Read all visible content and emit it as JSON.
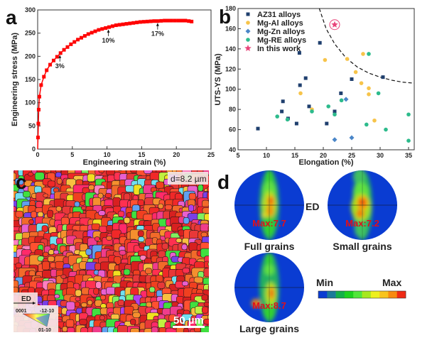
{
  "panel_labels": {
    "a": "a",
    "b": "b",
    "c": "c",
    "d": "d"
  },
  "chart_data": [
    {
      "type": "line",
      "panel": "a",
      "xlabel": "Engineering strain (%)",
      "ylabel": "Engineering stress (MPa)",
      "xlim": [
        0,
        25
      ],
      "ylim": [
        0,
        300
      ],
      "xticks": [
        "0",
        "5",
        "10",
        "15",
        "20",
        "25"
      ],
      "yticks": [
        "0",
        "50",
        "100",
        "150",
        "200",
        "250",
        "300"
      ],
      "grid": false,
      "color": "#ff0000",
      "marker": "square",
      "x": [
        0,
        0.05,
        0.1,
        0.15,
        0.25,
        0.5,
        0.9,
        1.3,
        1.8,
        2.3,
        2.8,
        3.3,
        3.8,
        4.3,
        4.8,
        5.3,
        5.8,
        6.3,
        6.8,
        7.3,
        7.8,
        8.3,
        8.8,
        9.3,
        9.8,
        10.3,
        10.8,
        11.3,
        11.8,
        12.3,
        12.8,
        13.3,
        13.8,
        14.3,
        14.8,
        15.3,
        15.8,
        16.3,
        16.8,
        17.3,
        17.8,
        18.3,
        18.8,
        19.3,
        19.8,
        20.3,
        20.8,
        21.3,
        21.8,
        22.2
      ],
      "y": [
        0,
        25,
        55,
        85,
        113,
        138,
        156,
        170,
        182,
        191,
        199,
        207,
        214,
        220,
        226,
        231,
        236,
        240,
        244,
        248,
        251,
        254,
        257,
        259,
        261,
        263,
        265,
        267,
        268,
        269,
        270,
        271,
        272,
        273,
        274,
        274.5,
        275,
        275.5,
        276,
        276,
        276.5,
        277,
        277,
        277,
        277,
        277,
        277,
        277,
        276,
        275
      ],
      "annotations": [
        {
          "text": "3%",
          "x": 3.2,
          "y": 207
        },
        {
          "text": "10%",
          "x": 10.2,
          "y": 262
        },
        {
          "text": "17%",
          "x": 17.3,
          "y": 276
        }
      ]
    },
    {
      "type": "scatter",
      "panel": "b",
      "xlabel": "Elongation (%)",
      "ylabel": "UTS-YS (MPa)",
      "xlim": [
        5,
        36
      ],
      "ylim": [
        40,
        180
      ],
      "xticks": [
        "5",
        "10",
        "15",
        "20",
        "25",
        "30",
        "35"
      ],
      "yticks": [
        "40",
        "60",
        "80",
        "100",
        "120",
        "140",
        "160",
        "180"
      ],
      "grid": false,
      "legend_position": "top-left",
      "series": [
        {
          "name": "AZ31 alloys",
          "marker": "square",
          "color": "#1f3f6e",
          "points": [
            [
              8.5,
              61
            ],
            [
              12.7,
              78
            ],
            [
              12.9,
              88
            ],
            [
              13.8,
              71
            ],
            [
              15.3,
              66
            ],
            [
              15.8,
              136
            ],
            [
              15.9,
              104
            ],
            [
              16.9,
              111
            ],
            [
              17.5,
              83
            ],
            [
              19.4,
              146
            ],
            [
              20.6,
              66
            ],
            [
              22,
              78
            ],
            [
              23.1,
              96
            ],
            [
              25,
              110
            ],
            [
              30.5,
              112
            ]
          ]
        },
        {
          "name": "Mg-Al alloys",
          "marker": "circle",
          "color": "#f7c44a",
          "points": [
            [
              16,
              96
            ],
            [
              18,
              80
            ],
            [
              20.3,
              129
            ],
            [
              24.2,
              130
            ],
            [
              25.7,
              117
            ],
            [
              26.7,
              106
            ],
            [
              27,
              135
            ],
            [
              28,
              101
            ],
            [
              28,
              95
            ],
            [
              29,
              69
            ]
          ]
        },
        {
          "name": "Mg-Zn alloys",
          "marker": "diamond",
          "color": "#4a86c8",
          "points": [
            [
              22,
              50
            ],
            [
              24,
              90
            ],
            [
              25,
              52
            ]
          ]
        },
        {
          "name": "Mg-RE alloys",
          "marker": "circle",
          "color": "#2dbb8c",
          "points": [
            [
              11.9,
              73
            ],
            [
              13.7,
              70
            ],
            [
              18,
              78
            ],
            [
              20.9,
              83
            ],
            [
              22,
              75
            ],
            [
              23.2,
              89
            ],
            [
              27.6,
              65
            ],
            [
              28,
              135
            ],
            [
              29.7,
              96
            ],
            [
              31,
              60
            ],
            [
              35,
              75
            ],
            [
              35,
              49
            ]
          ]
        },
        {
          "name": "In this work",
          "marker": "star",
          "color": "#e8457a",
          "points": [
            [
              22,
              164
            ]
          ]
        }
      ],
      "boundary_curve": [
        [
          19.3,
          180
        ],
        [
          20.5,
          160
        ],
        [
          22,
          145
        ],
        [
          24,
          131
        ],
        [
          26,
          122
        ],
        [
          28,
          116
        ],
        [
          30,
          112
        ],
        [
          32,
          109
        ],
        [
          34,
          107
        ],
        [
          36,
          106
        ]
      ]
    }
  ],
  "ebsd_map": {
    "grain_size_label": "d=8.2 µm",
    "scale_bar_label": "50 µm",
    "direction_label": "ED",
    "ipf_key": {
      "corner_0001": "0001",
      "corner_1210": "-12-10",
      "corner_0110": "01-10"
    }
  },
  "pole_figures": {
    "direction_label": "ED",
    "figures": [
      {
        "title": "Full grains",
        "max_label": "Max:7.7"
      },
      {
        "title": "Small grains",
        "max_label": "Max:7.2"
      },
      {
        "title": "Large grains",
        "max_label": "Max:8.7"
      }
    ],
    "colorbar": {
      "min_label": "Min",
      "max_label": "Max",
      "colors": [
        "#0a3cd2",
        "#1c7a9a",
        "#14b048",
        "#1ed21e",
        "#52e63a",
        "#a6e81e",
        "#eef01e",
        "#f8c41e",
        "#f88a10",
        "#f02a14"
      ]
    }
  }
}
